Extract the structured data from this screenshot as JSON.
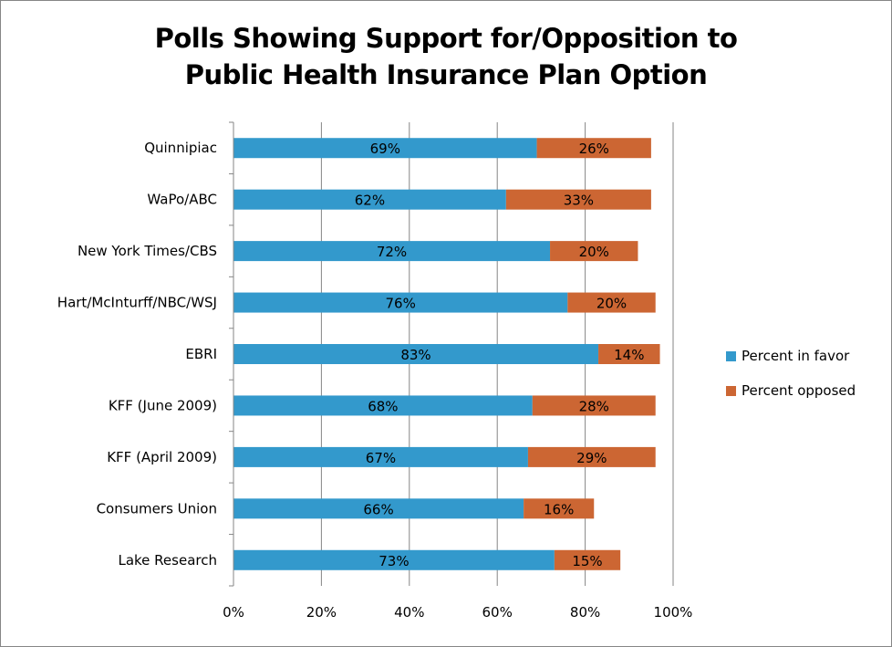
{
  "chart_data": {
    "type": "bar",
    "orientation": "horizontal",
    "stacked": true,
    "title": "Polls Showing Support for/Opposition to Public Health Insurance Plan Option",
    "title_lines": [
      "Polls Showing Support for/Opposition to",
      "Public Health Insurance Plan Option"
    ],
    "categories": [
      "Quinnipiac",
      "WaPo/ABC",
      "New York Times/CBS",
      "Hart/McInturff/NBC/WSJ",
      "EBRI",
      "KFF (June 2009)",
      "KFF (April 2009)",
      "Consumers Union",
      "Lake Research"
    ],
    "series": [
      {
        "name": "Percent in favor",
        "color": "#3399cc",
        "values": [
          69,
          62,
          72,
          76,
          83,
          68,
          67,
          66,
          73
        ],
        "labels": [
          "69%",
          "62%",
          "72%",
          "76%",
          "83%",
          "68%",
          "67%",
          "66%",
          "73%"
        ]
      },
      {
        "name": "Percent opposed",
        "color": "#cc6633",
        "values": [
          26,
          33,
          20,
          20,
          14,
          28,
          29,
          16,
          15
        ],
        "labels": [
          "26%",
          "33%",
          "20%",
          "20%",
          "14%",
          "28%",
          "29%",
          "16%",
          "15%"
        ]
      }
    ],
    "xlim": [
      0,
      100
    ],
    "xticks": [
      "0%",
      "20%",
      "40%",
      "60%",
      "80%",
      "100%"
    ],
    "grid": "vertical",
    "legend": "right"
  }
}
